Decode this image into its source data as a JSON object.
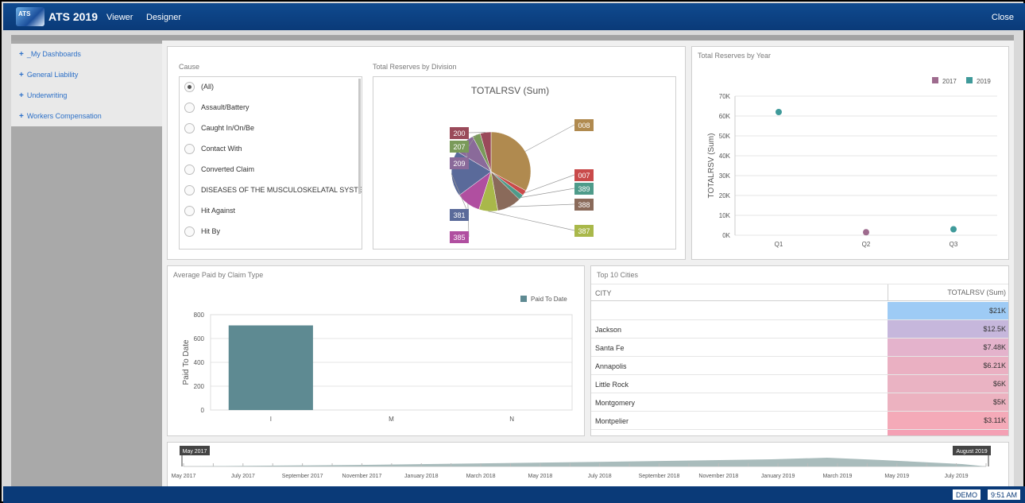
{
  "app": {
    "title": "ATS 2019",
    "logo_text": "ATS",
    "nav": [
      "Viewer",
      "Designer"
    ],
    "close": "Close"
  },
  "sidebar": {
    "items": [
      {
        "label": "_My Dashboards"
      },
      {
        "label": "General Liability"
      },
      {
        "label": "Underwriting"
      },
      {
        "label": "Workers Compensation"
      }
    ]
  },
  "cause_filter": {
    "title": "Cause",
    "options": [
      "(All)",
      "Assault/Battery",
      "Caught In/On/Be",
      "Contact With",
      "Converted Claim",
      "DISEASES OF THE MUSCULOSKELATAL SYSTE...",
      "Hit Against",
      "Hit By"
    ],
    "selected": "(All)"
  },
  "reserves_by_division": {
    "title": "Total Reserves by Division",
    "chart_data": {
      "type": "pie",
      "title": "TOTALRSV (Sum)",
      "labels": [
        "008",
        "007",
        "389",
        "388",
        "387",
        "385",
        "381",
        "209",
        "207",
        "200"
      ],
      "values": [
        30,
        2,
        2,
        9,
        7,
        9,
        17,
        8,
        3,
        4
      ],
      "colors": [
        "#b08a4f",
        "#c94a4a",
        "#4e9b8a",
        "#8a6a5a",
        "#a9b84a",
        "#b04fa0",
        "#5a6a9a",
        "#8a6a9a",
        "#7a9a5a",
        "#9a4a5a"
      ]
    }
  },
  "reserves_by_year": {
    "title": "Total Reserves by Year",
    "chart_data": {
      "type": "scatter",
      "ylabel": "TOTALRSV (Sum)",
      "categories": [
        "Q1",
        "Q2",
        "Q3"
      ],
      "yticks": [
        "0K",
        "10K",
        "20K",
        "30K",
        "40K",
        "50K",
        "60K",
        "70K"
      ],
      "ylim": [
        0,
        70000
      ],
      "series": [
        {
          "name": "2017",
          "color": "#9e6b8e",
          "values": [
            null,
            1500,
            null
          ]
        },
        {
          "name": "2019",
          "color": "#3f9a9a",
          "values": [
            62000,
            null,
            3000
          ]
        }
      ],
      "legend": "top-right"
    }
  },
  "avg_paid": {
    "title": "Average Paid by Claim Type",
    "chart_data": {
      "type": "bar",
      "ylabel": "Paid To Date",
      "categories": [
        "I",
        "M",
        "N"
      ],
      "yticks": [
        "0",
        "200",
        "400",
        "600",
        "800"
      ],
      "ylim": [
        0,
        800
      ],
      "series": [
        {
          "name": "Paid To Date",
          "color": "#5e8a92",
          "values": [
            710,
            0,
            0
          ]
        }
      ],
      "legend": "top-right"
    }
  },
  "top_cities": {
    "title": "Top 10 Cities",
    "columns": [
      "CITY",
      "TOTALRSV (Sum)"
    ],
    "rows": [
      {
        "city": "",
        "value": "$21K",
        "color": "#9ecbf5"
      },
      {
        "city": "Jackson",
        "value": "$12.5K",
        "color": "#c6b7dc"
      },
      {
        "city": "Santa Fe",
        "value": "$7.48K",
        "color": "#e4b3cc"
      },
      {
        "city": "Annapolis",
        "value": "$6.21K",
        "color": "#eab0c2"
      },
      {
        "city": "Little Rock",
        "value": "$6K",
        "color": "#eab3c3"
      },
      {
        "city": "Montgomery",
        "value": "$5K",
        "color": "#ecb2c0"
      },
      {
        "city": "Montpelier",
        "value": "$3.11K",
        "color": "#f4aab8"
      }
    ]
  },
  "timeline": {
    "start": "May 2017",
    "end": "August 2019",
    "labels": [
      "May 2017",
      "July 2017",
      "September 2017",
      "November 2017",
      "January 2018",
      "March 2018",
      "May 2018",
      "July 2018",
      "September 2018",
      "November 2018",
      "January 2019",
      "March 2019",
      "May 2019",
      "July 2019"
    ]
  },
  "taskbar": {
    "demo": "DEMO",
    "time": "9:51 AM"
  }
}
